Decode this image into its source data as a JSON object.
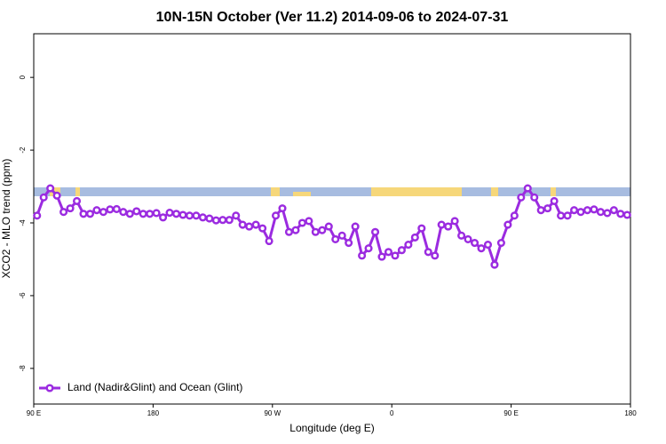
{
  "chart_data": {
    "type": "line",
    "title": "10N-15N October (Ver 11.2)   2014-09-06 to 2024-07-31",
    "xlabel": "Longitude (deg E)",
    "ylabel": "XCO2 - MLO trend (ppm)",
    "x": [
      92.5,
      97.5,
      102.5,
      107.5,
      112.5,
      117.5,
      122.5,
      127.5,
      132.5,
      137.5,
      142.5,
      147.5,
      152.5,
      157.5,
      162.5,
      167.5,
      172.5,
      177.5,
      182.5,
      187.5,
      192.5,
      197.5,
      202.5,
      207.5,
      212.5,
      217.5,
      222.5,
      227.5,
      232.5,
      237.5,
      242.5,
      247.5,
      252.5,
      257.5,
      262.5,
      267.5,
      272.5,
      277.5,
      282.5,
      287.5,
      292.5,
      297.5,
      302.5,
      307.5,
      312.5,
      317.5,
      322.5,
      327.5,
      332.5,
      337.5,
      342.5,
      347.5,
      352.5,
      357.5,
      362.5,
      367.5,
      372.5,
      377.5,
      382.5,
      387.5,
      392.5,
      397.5,
      402.5,
      407.5,
      412.5,
      417.5,
      422.5,
      427.5,
      432.5,
      437.5,
      442.5,
      447.5,
      452.5,
      457.5,
      462.5,
      467.5,
      472.5,
      477.5,
      482.5,
      487.5,
      492.5,
      497.5,
      502.5,
      507.5,
      512.5,
      517.5,
      522.5,
      527.5,
      532.5,
      537.5
    ],
    "series": [
      {
        "name": "Land (Nadir&Glint) and Ocean (Glint)",
        "color": "#9b2be0",
        "values": [
          -3.8,
          -3.3,
          -3.05,
          -3.25,
          -3.7,
          -3.6,
          -3.4,
          -3.75,
          -3.75,
          -3.65,
          -3.7,
          -3.63,
          -3.62,
          -3.7,
          -3.75,
          -3.68,
          -3.75,
          -3.75,
          -3.73,
          -3.85,
          -3.72,
          -3.75,
          -3.78,
          -3.8,
          -3.8,
          -3.85,
          -3.88,
          -3.93,
          -3.92,
          -3.92,
          -3.8,
          -4.05,
          -4.1,
          -4.05,
          -4.15,
          -4.5,
          -3.8,
          -3.6,
          -4.25,
          -4.2,
          -4.0,
          -3.95,
          -4.25,
          -4.2,
          -4.1,
          -4.45,
          -4.35,
          -4.55,
          -4.1,
          -4.9,
          -4.7,
          -4.25,
          -4.93,
          -4.8,
          -4.9,
          -4.75,
          -4.6,
          -4.4,
          -4.15,
          -4.8,
          -4.9,
          -4.05,
          -4.1,
          -3.95,
          -4.35,
          -4.45,
          -4.55,
          -4.7,
          -4.6,
          -5.15,
          -4.55,
          -4.05,
          -3.8,
          -3.3,
          -3.05,
          -3.3,
          -3.65,
          -3.6,
          -3.4,
          -3.8,
          -3.8,
          -3.65,
          -3.7,
          -3.65,
          -3.63,
          -3.7,
          -3.73,
          -3.65,
          -3.75,
          -3.78
        ]
      }
    ],
    "xlim": [
      90,
      540
    ],
    "xticks": [
      {
        "value": 90,
        "label": "90 E"
      },
      {
        "value": 180,
        "label": "180"
      },
      {
        "value": 270,
        "label": "90 W"
      },
      {
        "value": 360,
        "label": "0"
      },
      {
        "value": 450,
        "label": "90 E"
      },
      {
        "value": 540,
        "label": "180"
      }
    ],
    "ylim": [
      -8.98,
      1.2
    ],
    "yticks": [
      0,
      -2,
      -4,
      -6,
      -8
    ],
    "legend": "bottom-left"
  }
}
